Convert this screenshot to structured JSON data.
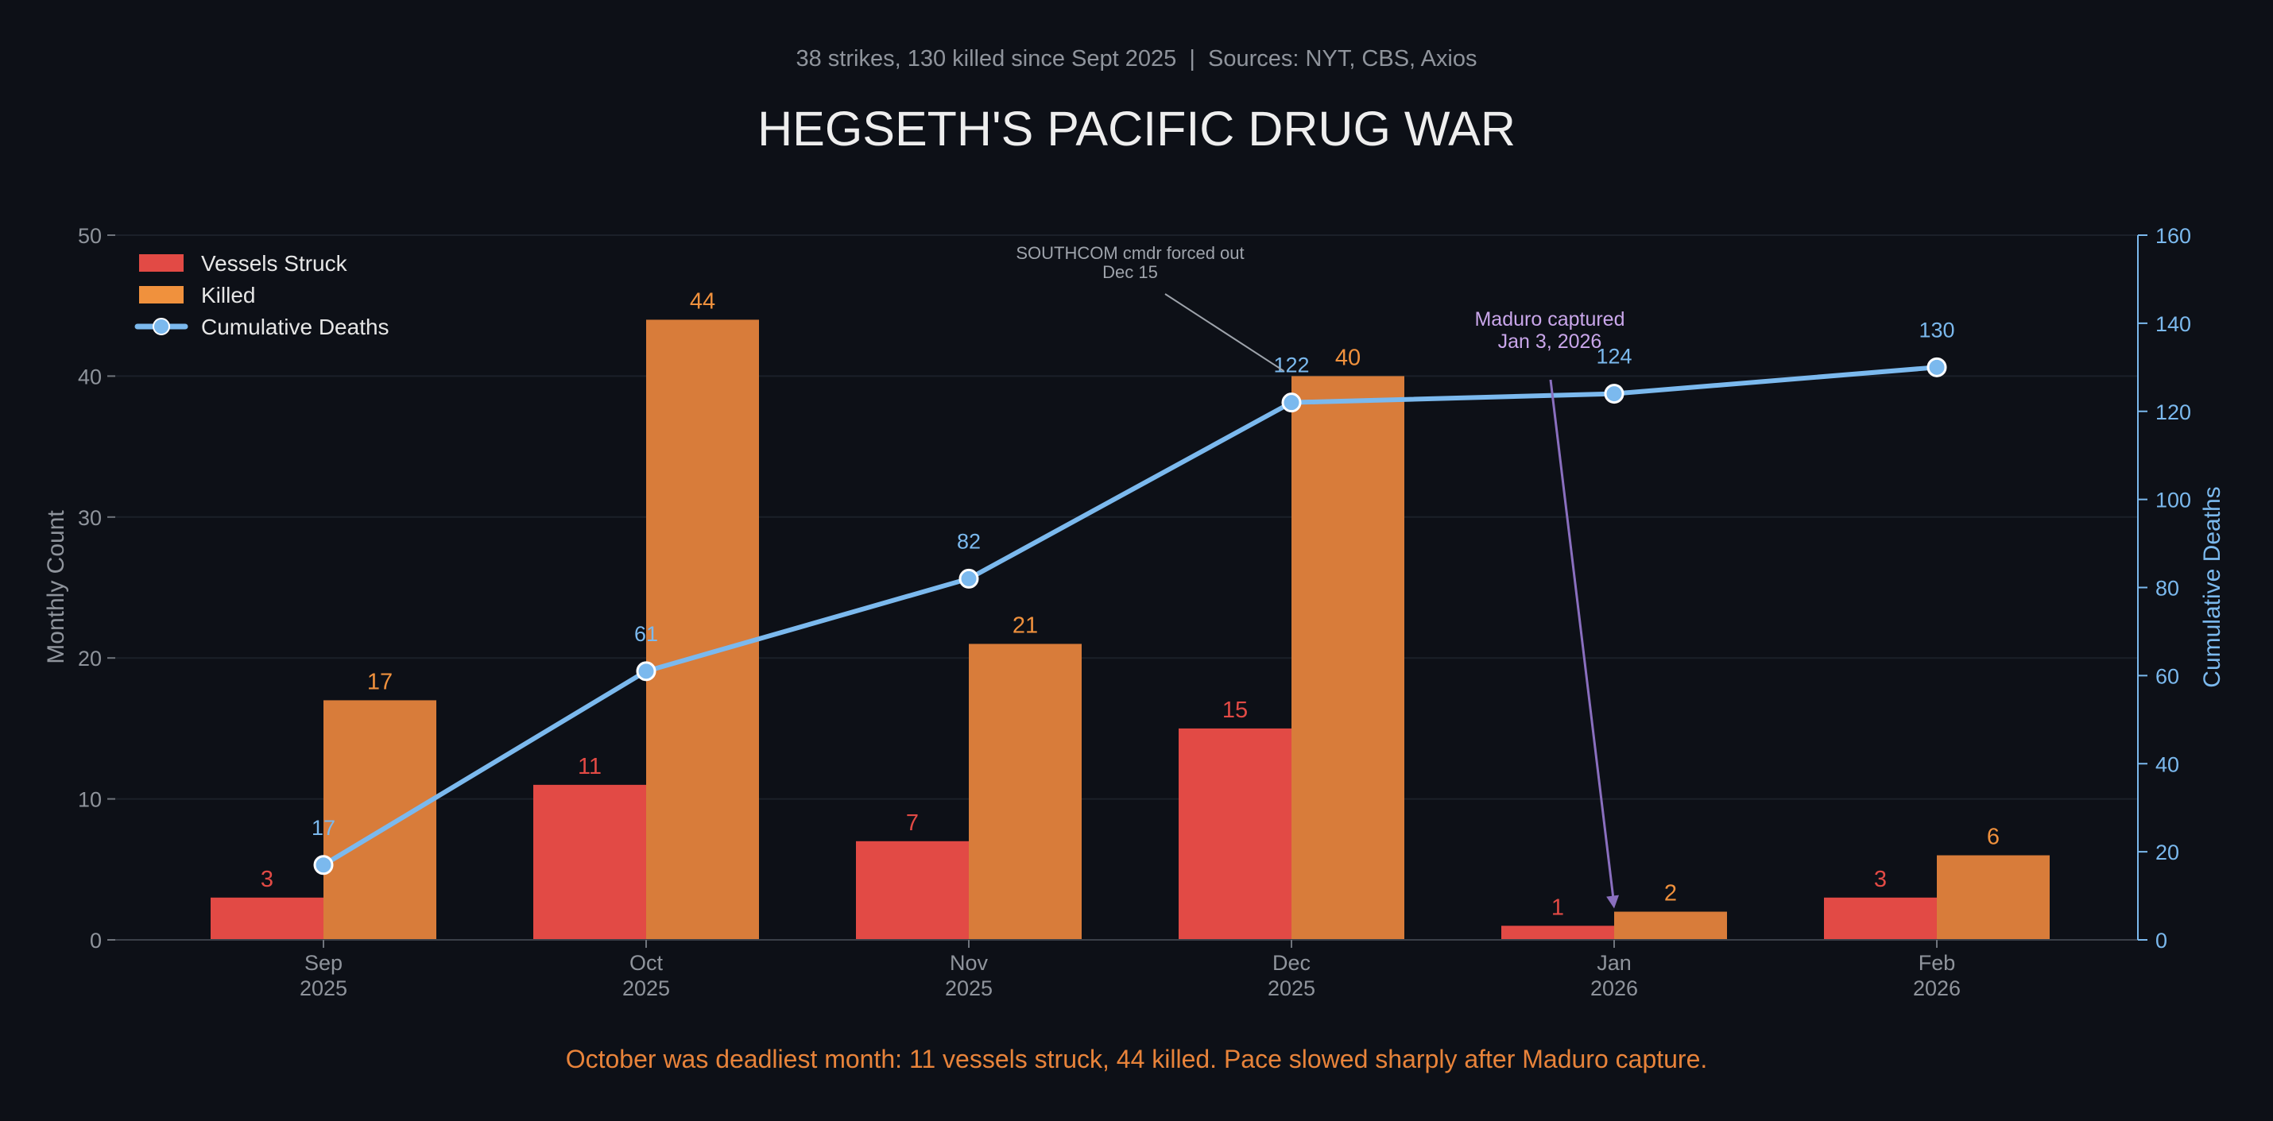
{
  "colors": {
    "background": "#0d1017",
    "vessels": "#e24a45",
    "killed": "#d87c3a",
    "cumulative": "#7bb9ee",
    "annotation_maduro": "#c9a6ea",
    "arrow_maduro": "#8a6fbf",
    "annotation_southcom": "#9ea3ab",
    "axis_text": "#8f949c",
    "grid": "#1b2029",
    "footnote": "#e8833a"
  },
  "chart_data": {
    "type": "bar",
    "subtitle": "38 strikes, 130 killed since Sept 2025  |  Sources: NYT, CBS, Axios",
    "title": "HEGSETH'S PACIFIC DRUG WAR",
    "categories": [
      [
        "Sep",
        "2025"
      ],
      [
        "Oct",
        "2025"
      ],
      [
        "Nov",
        "2025"
      ],
      [
        "Dec",
        "2025"
      ],
      [
        "Jan",
        "2026"
      ],
      [
        "Feb",
        "2026"
      ]
    ],
    "series": [
      {
        "name": "Vessels Struck",
        "kind": "bar",
        "axis": "left",
        "values": [
          3,
          11,
          7,
          15,
          1,
          3
        ]
      },
      {
        "name": "Killed",
        "kind": "bar",
        "axis": "left",
        "values": [
          17,
          44,
          21,
          40,
          2,
          6
        ]
      },
      {
        "name": "Cumulative Deaths",
        "kind": "line",
        "axis": "right",
        "values": [
          17,
          61,
          82,
          122,
          124,
          130
        ]
      }
    ],
    "ylabel": "Monthly Count",
    "ylabel_right": "Cumulative Deaths",
    "ylim": [
      0,
      50
    ],
    "yticks": [
      "0",
      "10",
      "20",
      "30",
      "40",
      "50"
    ],
    "ylim_right": [
      0,
      160
    ],
    "yticks_right": [
      "0",
      "20",
      "40",
      "60",
      "80",
      "100",
      "120",
      "140",
      "160"
    ],
    "grid": true,
    "legend_position": "top-left",
    "annotations": [
      {
        "lines": [
          "SOUTHCOM cmdr forced out",
          "Dec 15"
        ],
        "target_index": 3,
        "target_value": 122,
        "axis": "right"
      },
      {
        "lines": [
          "Maduro captured",
          "Jan 3, 2026"
        ],
        "target_index": 4,
        "target_value": 2,
        "axis": "left"
      }
    ],
    "footnote": "October was deadliest month: 11 vessels struck, 44 killed. Pace slowed sharply after Maduro capture."
  }
}
